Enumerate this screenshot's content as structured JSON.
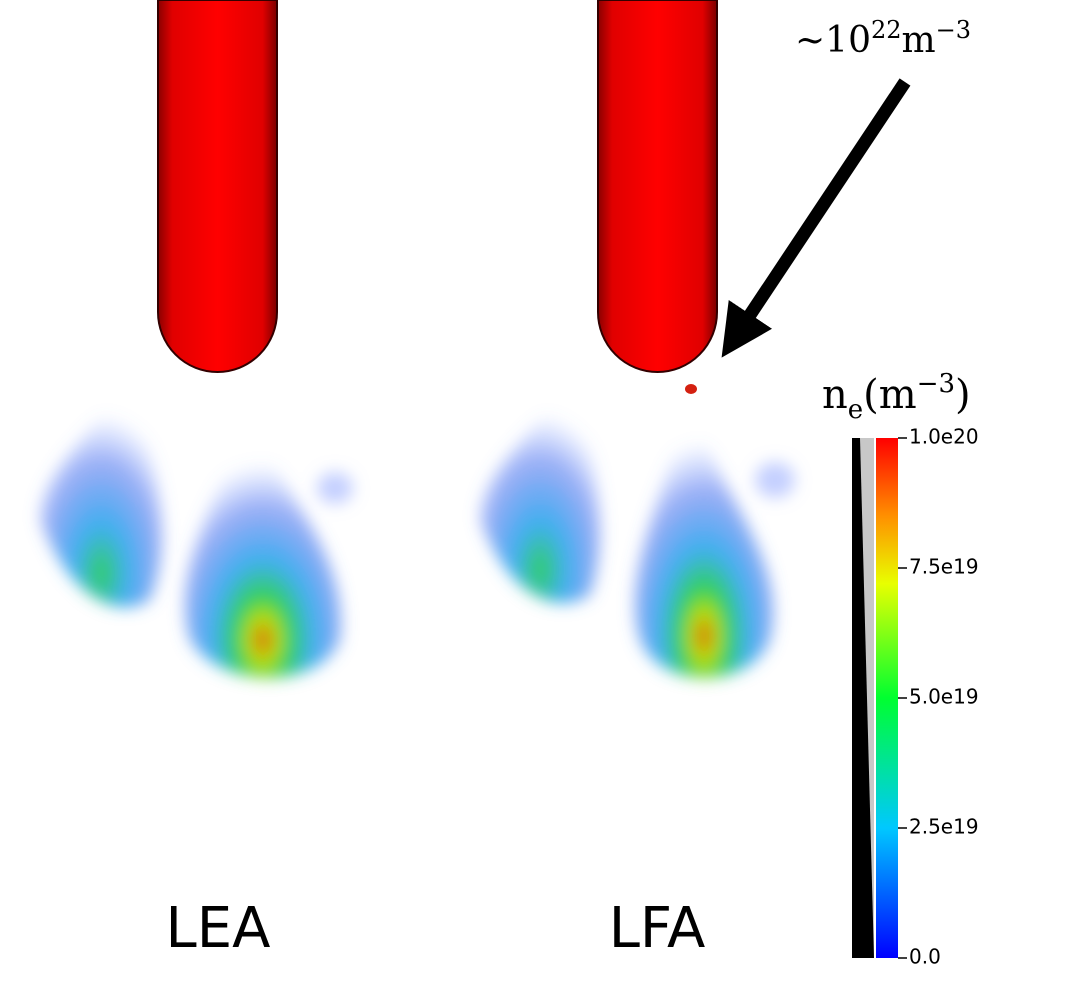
{
  "annotation": {
    "base": "~10",
    "exp": "22",
    "unit": "m",
    "unit_exp": "−3"
  },
  "colorbar": {
    "title": {
      "base": "n",
      "sub": "e",
      "open": "(m",
      "exp": "−3",
      "close": ")"
    },
    "range": [
      0,
      1e+20
    ],
    "ticks": [
      {
        "value": 0,
        "label": "0.0"
      },
      {
        "value": 2.5e+19,
        "label": "2.5e19"
      },
      {
        "value": 5e+19,
        "label": "5.0e19"
      },
      {
        "value": 7.5e+19,
        "label": "7.5e19"
      },
      {
        "value": 1e+20,
        "label": "1.0e20"
      }
    ]
  },
  "labels": [
    "LEA",
    "LFA"
  ]
}
